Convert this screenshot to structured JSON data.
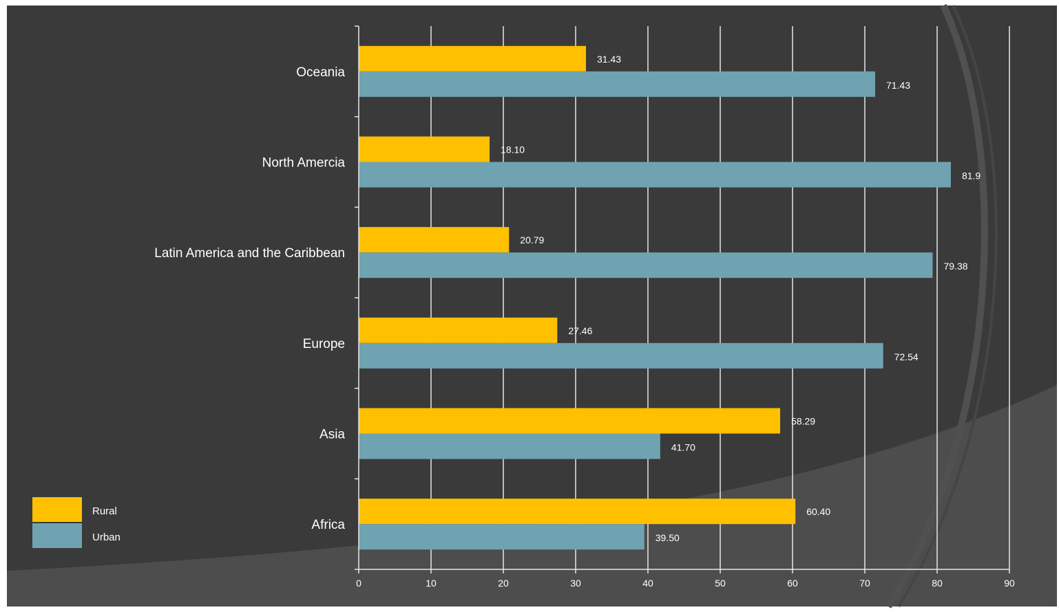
{
  "chart_data": {
    "type": "bar",
    "orientation": "horizontal",
    "categories": [
      "Africa",
      "Asia",
      "Europe",
      "Latin America and the Caribbean",
      "North Amercia",
      "Oceania"
    ],
    "series": [
      {
        "name": "Rural",
        "values": [
          60.4,
          58.29,
          27.46,
          20.79,
          18.1,
          31.43
        ],
        "labels": [
          "60.40",
          "58.29",
          "27.46",
          "20.79",
          "18.10",
          "31.43"
        ]
      },
      {
        "name": "Urban",
        "values": [
          39.5,
          41.7,
          72.54,
          79.38,
          81.9,
          71.43
        ],
        "labels": [
          "39.50",
          "41.70",
          "72.54",
          "79.38",
          "81.9",
          "71.43"
        ]
      }
    ],
    "x_ticks": [
      "0",
      "10",
      "20",
      "30",
      "40",
      "50",
      "60",
      "70",
      "80",
      "90"
    ],
    "xlim": [
      0,
      90
    ],
    "grid": true,
    "legend_position": "bottom-left",
    "colors": {
      "Rural": "#FFC000",
      "Urban": "#6FA3B1",
      "background": "#3A3A3A",
      "gridline": "#E8E8E8",
      "text": "#FFFFFF"
    }
  }
}
